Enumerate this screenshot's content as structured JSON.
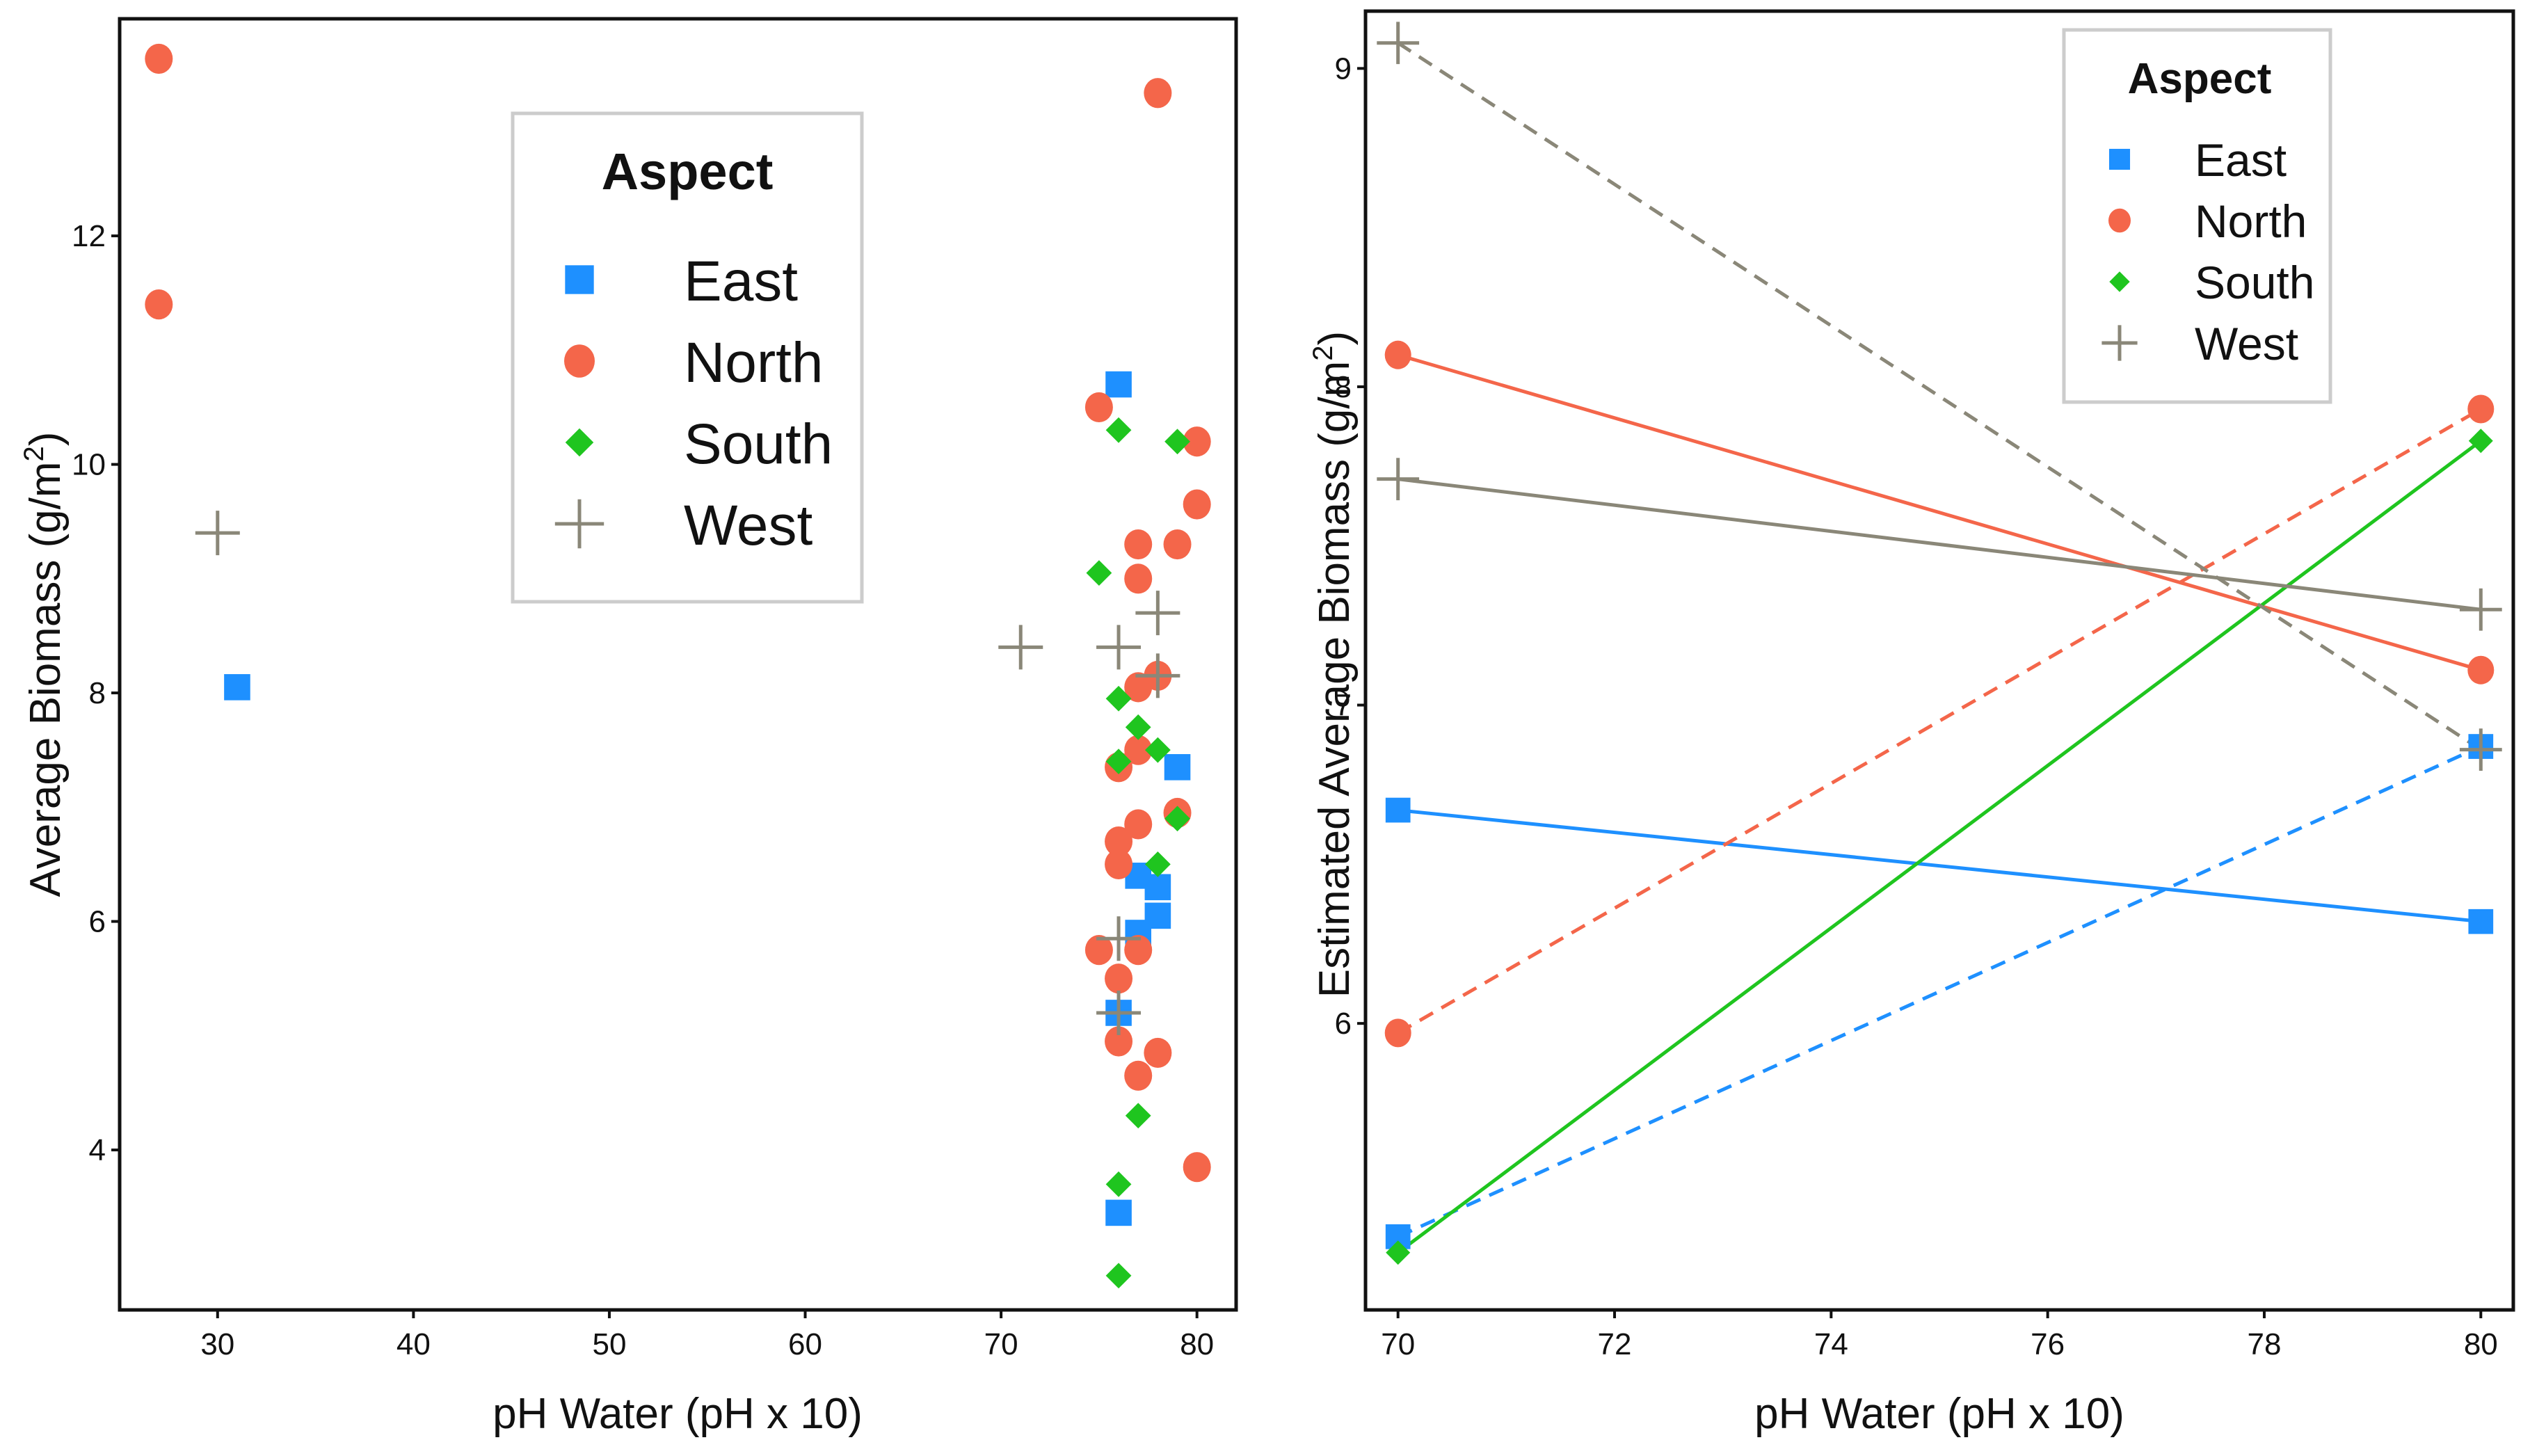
{
  "colors": {
    "East": "#1e90ff",
    "North": "#f4664a",
    "South": "#1fc51f",
    "West": "#8a8778",
    "frame": "#111111",
    "legend_border": "#cccccc"
  },
  "chart_data": [
    {
      "type": "scatter",
      "xlabel": "pH Water (pH x 10)",
      "ylabel": "Average Biomass (g/m",
      "ylabel_sup": "2",
      "ylabel_close": ")",
      "xlim": [
        25,
        82
      ],
      "ylim": [
        2.6,
        13.9
      ],
      "xticks": [
        30,
        40,
        50,
        60,
        70,
        80
      ],
      "yticks": [
        4,
        6,
        8,
        10,
        12
      ],
      "legend": {
        "title": "Aspect",
        "position": "top-center",
        "entries": [
          "East",
          "North",
          "South",
          "West"
        ]
      },
      "series": [
        {
          "name": "East",
          "marker": "square",
          "points": [
            [
              31,
              8.05
            ],
            [
              76,
              10.7
            ],
            [
              79,
              7.35
            ],
            [
              77,
              6.4
            ],
            [
              78,
              6.3
            ],
            [
              78,
              6.05
            ],
            [
              77,
              5.9
            ],
            [
              76,
              5.2
            ],
            [
              76,
              3.45
            ]
          ]
        },
        {
          "name": "North",
          "marker": "circle",
          "points": [
            [
              27,
              13.55
            ],
            [
              27,
              11.4
            ],
            [
              78,
              13.25
            ],
            [
              75,
              10.5
            ],
            [
              80,
              10.2
            ],
            [
              80,
              9.65
            ],
            [
              77,
              9.3
            ],
            [
              79,
              9.3
            ],
            [
              77,
              9.0
            ],
            [
              78,
              8.15
            ],
            [
              77,
              8.05
            ],
            [
              77,
              7.5
            ],
            [
              76,
              7.35
            ],
            [
              79,
              6.95
            ],
            [
              77,
              6.85
            ],
            [
              76,
              6.7
            ],
            [
              76,
              6.5
            ],
            [
              75,
              5.75
            ],
            [
              77,
              5.75
            ],
            [
              76,
              5.5
            ],
            [
              76,
              4.95
            ],
            [
              78,
              4.85
            ],
            [
              77,
              4.65
            ],
            [
              80,
              3.85
            ]
          ]
        },
        {
          "name": "South",
          "marker": "diamond",
          "points": [
            [
              76,
              10.3
            ],
            [
              79,
              10.2
            ],
            [
              75,
              9.05
            ],
            [
              76,
              7.95
            ],
            [
              77,
              7.7
            ],
            [
              78,
              7.5
            ],
            [
              76,
              7.4
            ],
            [
              79,
              6.9
            ],
            [
              78,
              6.5
            ],
            [
              77,
              4.3
            ],
            [
              76,
              3.7
            ],
            [
              76,
              2.9
            ]
          ]
        },
        {
          "name": "West",
          "marker": "plus",
          "points": [
            [
              30,
              9.4
            ],
            [
              71,
              8.4
            ],
            [
              76,
              8.4
            ],
            [
              78,
              8.7
            ],
            [
              78,
              8.15
            ],
            [
              76,
              5.85
            ],
            [
              76,
              5.2
            ]
          ]
        }
      ]
    },
    {
      "type": "line",
      "xlabel": "pH Water (pH x 10)",
      "ylabel": "Estimated Average Biomass (g/m",
      "ylabel_sup": "2",
      "ylabel_close": ")",
      "xlim": [
        69.7,
        80.3
      ],
      "ylim": [
        5.1,
        9.18
      ],
      "xticks": [
        70,
        72,
        74,
        76,
        78,
        80
      ],
      "yticks": [
        6,
        7,
        8,
        9
      ],
      "legend": {
        "title": "Aspect",
        "position": "top-right",
        "entries": [
          "East",
          "North",
          "South",
          "West"
        ]
      },
      "series": [
        {
          "name": "East",
          "marker": "square",
          "style": "solid",
          "x": [
            70,
            80
          ],
          "y": [
            6.67,
            6.32
          ]
        },
        {
          "name": "East",
          "marker": "square",
          "style": "dashed",
          "x": [
            70,
            80
          ],
          "y": [
            5.33,
            6.87
          ]
        },
        {
          "name": "North",
          "marker": "circle",
          "style": "solid",
          "x": [
            70,
            80
          ],
          "y": [
            8.1,
            7.11
          ]
        },
        {
          "name": "North",
          "marker": "circle",
          "style": "dashed",
          "x": [
            70,
            80
          ],
          "y": [
            5.97,
            7.93
          ]
        },
        {
          "name": "South",
          "marker": "diamond",
          "style": "solid",
          "x": [
            70,
            80
          ],
          "y": [
            5.28,
            7.83
          ]
        },
        {
          "name": "West",
          "marker": "plus",
          "style": "solid",
          "x": [
            70,
            80
          ],
          "y": [
            7.71,
            7.3
          ]
        },
        {
          "name": "West",
          "marker": "plus",
          "style": "dashed",
          "x": [
            70,
            80
          ],
          "y": [
            9.08,
            6.86
          ]
        }
      ]
    }
  ]
}
